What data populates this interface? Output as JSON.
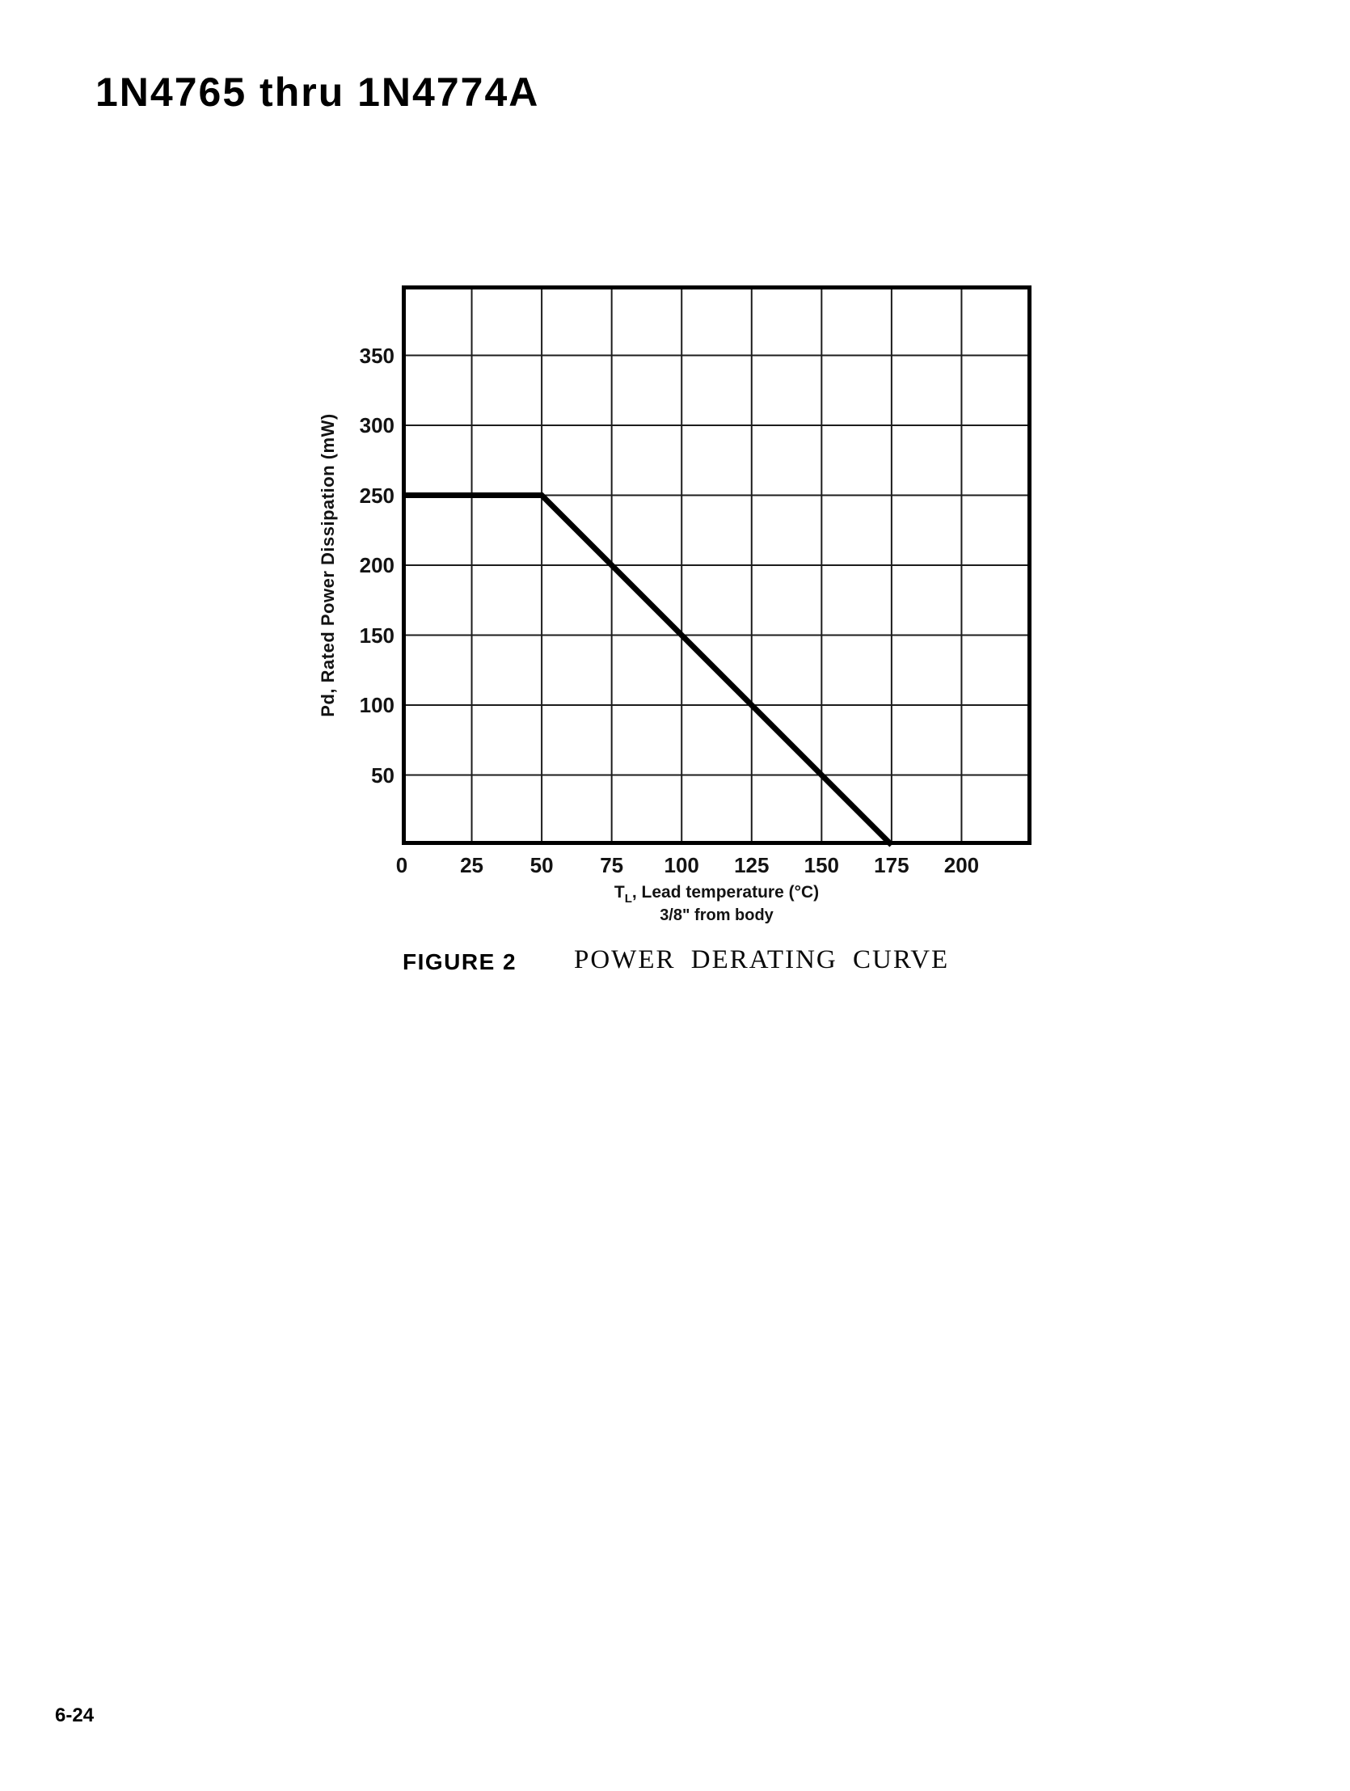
{
  "page": {
    "title": "1N4765 thru 1N4774A",
    "page_number": "6-24"
  },
  "figure": {
    "label": "FIGURE 2",
    "caption": "POWER DERATING CURVE"
  },
  "chart_data": {
    "type": "line",
    "title": "Power Derating Curve",
    "xlabel_t": "T",
    "xlabel_sub": "L",
    "xlabel_rest": ", Lead temperature (°C)",
    "xlabel_line2": "3/8\" from body",
    "ylabel": "Pd, Rated Power Dissipation  (mW)",
    "xlim": [
      0,
      225
    ],
    "ylim": [
      0,
      400
    ],
    "x_ticks": [
      0,
      25,
      50,
      75,
      100,
      125,
      150,
      175,
      200
    ],
    "y_ticks": [
      50,
      100,
      150,
      200,
      250,
      300,
      350
    ],
    "x_grid_step": 25,
    "y_grid_step": 50,
    "grid": true,
    "legend": "none",
    "ink_color": "#000000",
    "grid_color": "#1c1c1c",
    "series": [
      {
        "name": "rated-power-dissipation",
        "points": [
          [
            0,
            250
          ],
          [
            50,
            250
          ],
          [
            175,
            0
          ]
        ]
      }
    ]
  }
}
